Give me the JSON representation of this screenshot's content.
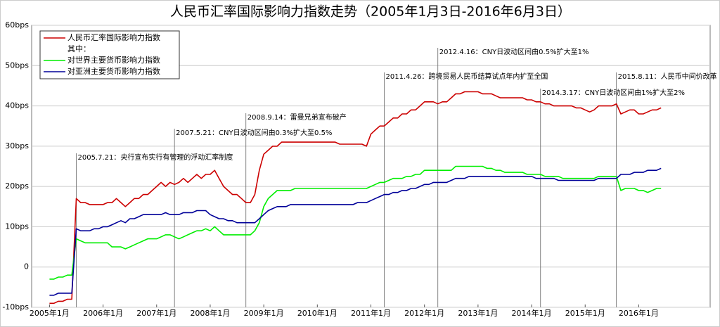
{
  "chart_data": {
    "type": "line",
    "title": "人民币汇率国际影响力指数走势（2005年1月3日-2016年6月3日）",
    "legend_subheading": "其中：",
    "grid": true,
    "xlim": [
      "2004-09",
      "2017-05"
    ],
    "xticks": [
      {
        "value": "2005-01",
        "label": "2005年1月"
      },
      {
        "value": "2006-01",
        "label": "2006年1月"
      },
      {
        "value": "2007-01",
        "label": "2007年1月"
      },
      {
        "value": "2008-01",
        "label": "2008年1月"
      },
      {
        "value": "2009-01",
        "label": "2009年1月"
      },
      {
        "value": "2010-01",
        "label": "2010年1月"
      },
      {
        "value": "2011-01",
        "label": "2011年1月"
      },
      {
        "value": "2012-01",
        "label": "2012年1月"
      },
      {
        "value": "2013-01",
        "label": "2013年1月"
      },
      {
        "value": "2014-01",
        "label": "2014年1月"
      },
      {
        "value": "2015-01",
        "label": "2015年1月"
      },
      {
        "value": "2016-01",
        "label": "2016年1月"
      }
    ],
    "ylim": [
      -10,
      60
    ],
    "yticks": [
      {
        "value": -10,
        "label": "-10bps"
      },
      0,
      {
        "value": 10,
        "label": "10bps"
      },
      {
        "value": 20,
        "label": "20bps"
      },
      {
        "value": 30,
        "label": "30bps"
      },
      {
        "value": 40,
        "label": "40bps"
      },
      {
        "value": 50,
        "label": "50bps"
      },
      {
        "value": 60,
        "label": "60bps"
      }
    ],
    "annotations": [
      {
        "x": "2005-07",
        "text": "2005.7.21：央行宣布实行有管理的浮动汇率制度"
      },
      {
        "x": "2007-05",
        "text": "2007.5.21：CNY日波动区间由0.3%扩大至0.5%"
      },
      {
        "x": "2008-09",
        "text": "2008.9.14：雷曼兄弟宣布破产"
      },
      {
        "x": "2011-04",
        "text": "2011.4.26：跨境贸易人民币结算试点年内扩至全国"
      },
      {
        "x": "2012-04",
        "text": "2012.4.16：CNY日波动区间由0.5%扩大至1%"
      },
      {
        "x": "2014-03",
        "text": "2014.3.17：CNY日波动区间由1%扩大至2%"
      },
      {
        "x": "2015-08",
        "text": "2015.8.11：人民币中间价改革"
      }
    ],
    "x": [
      "2005-01",
      "2005-02",
      "2005-03",
      "2005-04",
      "2005-05",
      "2005-06",
      "2005-07",
      "2005-08",
      "2005-09",
      "2005-10",
      "2005-11",
      "2005-12",
      "2006-01",
      "2006-02",
      "2006-03",
      "2006-04",
      "2006-05",
      "2006-06",
      "2006-07",
      "2006-08",
      "2006-09",
      "2006-10",
      "2006-11",
      "2006-12",
      "2007-01",
      "2007-02",
      "2007-03",
      "2007-04",
      "2007-05",
      "2007-06",
      "2007-07",
      "2007-08",
      "2007-09",
      "2007-10",
      "2007-11",
      "2007-12",
      "2008-01",
      "2008-02",
      "2008-03",
      "2008-04",
      "2008-05",
      "2008-06",
      "2008-07",
      "2008-08",
      "2008-09",
      "2008-10",
      "2008-11",
      "2008-12",
      "2009-01",
      "2009-02",
      "2009-03",
      "2009-04",
      "2009-05",
      "2009-06",
      "2009-07",
      "2009-08",
      "2009-09",
      "2009-10",
      "2009-11",
      "2009-12",
      "2010-01",
      "2010-02",
      "2010-03",
      "2010-04",
      "2010-05",
      "2010-06",
      "2010-07",
      "2010-08",
      "2010-09",
      "2010-10",
      "2010-11",
      "2010-12",
      "2011-01",
      "2011-02",
      "2011-03",
      "2011-04",
      "2011-05",
      "2011-06",
      "2011-07",
      "2011-08",
      "2011-09",
      "2011-10",
      "2011-11",
      "2011-12",
      "2012-01",
      "2012-02",
      "2012-03",
      "2012-04",
      "2012-05",
      "2012-06",
      "2012-07",
      "2012-08",
      "2012-09",
      "2012-10",
      "2012-11",
      "2012-12",
      "2013-01",
      "2013-02",
      "2013-03",
      "2013-04",
      "2013-05",
      "2013-06",
      "2013-07",
      "2013-08",
      "2013-09",
      "2013-10",
      "2013-11",
      "2013-12",
      "2014-01",
      "2014-02",
      "2014-03",
      "2014-04",
      "2014-05",
      "2014-06",
      "2014-07",
      "2014-08",
      "2014-09",
      "2014-10",
      "2014-11",
      "2014-12",
      "2015-01",
      "2015-02",
      "2015-03",
      "2015-04",
      "2015-05",
      "2015-06",
      "2015-07",
      "2015-08",
      "2015-09",
      "2015-10",
      "2015-11",
      "2015-12",
      "2016-01",
      "2016-02",
      "2016-03",
      "2016-04",
      "2016-05",
      "2016-06"
    ],
    "series": [
      {
        "name": "人民币汇率国际影响力指数",
        "color": "#cc0000",
        "values": [
          -9,
          -9,
          -8.5,
          -8.5,
          -8,
          -8,
          17,
          16,
          16,
          15.5,
          15.5,
          15.5,
          15.5,
          16,
          16,
          17,
          16,
          15,
          16,
          17,
          17,
          18,
          18,
          19,
          20,
          21,
          20,
          21,
          20.5,
          21,
          22,
          21,
          22,
          23,
          22,
          23,
          23,
          24,
          22,
          20,
          19,
          18,
          18,
          17,
          16,
          16,
          18,
          24,
          28,
          29,
          30,
          30,
          31,
          31,
          31,
          31,
          31,
          31,
          31,
          31,
          31,
          31,
          31,
          31,
          31,
          30.5,
          30.5,
          30.5,
          30.5,
          30.5,
          30.5,
          30,
          33,
          34,
          35,
          35,
          36,
          37,
          37,
          38,
          38,
          39,
          39,
          40,
          41,
          41,
          41,
          40.5,
          41,
          41,
          42,
          43,
          43,
          43.5,
          43.5,
          43.5,
          43.5,
          43,
          43,
          43,
          42.5,
          42,
          42,
          42,
          42,
          42,
          42,
          41.5,
          41.5,
          41,
          41,
          40.5,
          40.5,
          40,
          40,
          40,
          40,
          40,
          39.5,
          39.5,
          39,
          38.5,
          39,
          40,
          40,
          40,
          40,
          40.5,
          38,
          38.5,
          39,
          39,
          38,
          38,
          38.5,
          39,
          39,
          39.5
        ]
      },
      {
        "name": "对世界主要货币影响力指数",
        "color": "#00ee00",
        "values": [
          -3,
          -3,
          -2.5,
          -2.5,
          -2,
          -2,
          7,
          6.5,
          6,
          6,
          6,
          6,
          6,
          6,
          5,
          5,
          5,
          4.5,
          5,
          5.5,
          6,
          6.5,
          7,
          7,
          7,
          7.5,
          8,
          8,
          7.5,
          7,
          7.5,
          8,
          8.5,
          9,
          9,
          9.5,
          9,
          10,
          9,
          8,
          8,
          8,
          8,
          8,
          8,
          8,
          9,
          11,
          15,
          17,
          18,
          19,
          19,
          19,
          19,
          19.5,
          19.5,
          19.5,
          19.5,
          19.5,
          19.5,
          19.5,
          19.5,
          19.5,
          19.5,
          19.5,
          19.5,
          19.5,
          19.5,
          19.5,
          19.5,
          19.5,
          20,
          20.5,
          21,
          21,
          21.5,
          22,
          22,
          22,
          22.5,
          22.5,
          23,
          23,
          24,
          24,
          24,
          24,
          24,
          24,
          24,
          25,
          25,
          25,
          25,
          25,
          25,
          25,
          24.5,
          24.5,
          24,
          24,
          23.5,
          23.5,
          23.5,
          23.5,
          23.5,
          23,
          23,
          23,
          23,
          22.5,
          22.5,
          22.5,
          22.5,
          22,
          22,
          22,
          22,
          22,
          22,
          22,
          22,
          22.5,
          22.5,
          22.5,
          22.5,
          22.5,
          19,
          19.5,
          19.5,
          19.5,
          19,
          19,
          18.5,
          19,
          19.5,
          19.5
        ]
      },
      {
        "name": "对亚洲主要货币影响力指数",
        "color": "#000099",
        "values": [
          -7,
          -7,
          -6.5,
          -6.5,
          -6.5,
          -6.5,
          9.5,
          9,
          9,
          9,
          9.5,
          9.5,
          10,
          10,
          10.5,
          11,
          11.5,
          11,
          12,
          12,
          12.5,
          13,
          13,
          13,
          13,
          13,
          13.5,
          13,
          13,
          13,
          13.5,
          13.5,
          13.5,
          14,
          14,
          14,
          13,
          12.5,
          12,
          12,
          11.5,
          11.5,
          11,
          11,
          11,
          11,
          11,
          12,
          13,
          14,
          14.5,
          15,
          15,
          15,
          15.5,
          15.5,
          15.5,
          15.5,
          15.5,
          15.5,
          15.5,
          15.5,
          15.5,
          15.5,
          15.5,
          15.5,
          15.5,
          15.5,
          15.5,
          16,
          16,
          16,
          16.5,
          17,
          17.5,
          18,
          18,
          18.5,
          18.5,
          19,
          19,
          19.5,
          19.5,
          20,
          20.5,
          20.5,
          21,
          21,
          21,
          21,
          21.5,
          22,
          22,
          22,
          22.5,
          22.5,
          22.5,
          22.5,
          22.5,
          22.5,
          22.5,
          22.5,
          22.5,
          22.5,
          22.5,
          22.5,
          22.5,
          22.5,
          22.5,
          22,
          22,
          22,
          22,
          22,
          21.5,
          21.5,
          21.5,
          21.5,
          21.5,
          21.5,
          21.5,
          21.5,
          21.5,
          22,
          22,
          22,
          22,
          22,
          23,
          23,
          23,
          23.5,
          23.5,
          23.5,
          24,
          24,
          24,
          24.5
        ]
      }
    ]
  }
}
